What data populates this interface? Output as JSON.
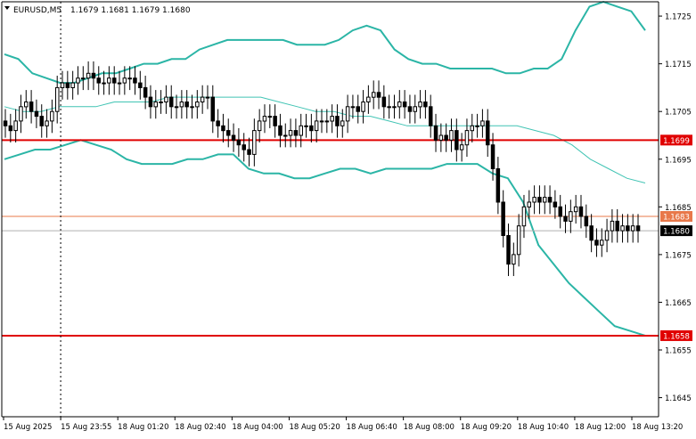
{
  "header": {
    "symbol_text": "EURUSD,M5",
    "ohlc_text": "1.1679 1.1681 1.1679 1.1680"
  },
  "colors": {
    "background": "#ffffff",
    "candle": "#000000",
    "bollinger_outer": "#2bb5a6",
    "bollinger_middle": "#41c4b4",
    "support_resistance": "#e00000",
    "level_orange": "#e8784a",
    "current_price_line": "#b0b0b0",
    "axis": "#000000"
  },
  "chart_data": {
    "type": "candlestick",
    "title": "EURUSD,M5",
    "ylim": [
      1.1641,
      1.1728
    ],
    "y_ticks": [
      "1.1725",
      "1.1715",
      "1.1705",
      "1.1695",
      "1.1685",
      "1.1675",
      "1.1665",
      "1.1655",
      "1.1645"
    ],
    "x_ticks": [
      "15 Aug 2025",
      "15 Aug 23:55",
      "18 Aug 01:20",
      "18 Aug 02:40",
      "18 Aug 04:00",
      "18 Aug 05:20",
      "18 Aug 06:40",
      "18 Aug 08:00",
      "18 Aug 09:20",
      "18 Aug 10:40",
      "18 Aug 12:00",
      "18 Aug 13:20"
    ],
    "session_separator": "15 Aug 23:55",
    "price_levels": [
      {
        "label": "1.1699",
        "value": 1.1699,
        "style": "red"
      },
      {
        "label": "1.1658",
        "value": 1.1658,
        "style": "red"
      },
      {
        "label": "1.1683",
        "value": 1.1683,
        "style": "orange"
      },
      {
        "label": "1.1680",
        "value": 1.168,
        "style": "current"
      }
    ],
    "close_series": [
      1.1702,
      1.1701,
      1.1703,
      1.1706,
      1.1707,
      1.1705,
      1.1704,
      1.1702,
      1.1703,
      1.1705,
      1.171,
      1.1711,
      1.171,
      1.1711,
      1.1712,
      1.1712,
      1.1713,
      1.1712,
      1.1711,
      1.1711,
      1.1712,
      1.1711,
      1.1711,
      1.1712,
      1.1712,
      1.1711,
      1.171,
      1.1708,
      1.1706,
      1.1707,
      1.1707,
      1.1708,
      1.1706,
      1.1706,
      1.1707,
      1.1706,
      1.1706,
      1.1707,
      1.1708,
      1.1708,
      1.1703,
      1.1702,
      1.1701,
      1.17,
      1.1699,
      1.1698,
      1.1697,
      1.1696,
      1.1701,
      1.1703,
      1.1704,
      1.1704,
      1.1702,
      1.17,
      1.17,
      1.1701,
      1.17,
      1.1702,
      1.1702,
      1.1701,
      1.1703,
      1.1703,
      1.1703,
      1.1704,
      1.1702,
      1.1703,
      1.1706,
      1.1706,
      1.1705,
      1.1707,
      1.1708,
      1.1709,
      1.1708,
      1.1706,
      1.1706,
      1.1706,
      1.1707,
      1.1706,
      1.1705,
      1.1706,
      1.1707,
      1.1706,
      1.1702,
      1.1699,
      1.17,
      1.1699,
      1.1701,
      1.1697,
      1.1698,
      1.1701,
      1.1702,
      1.1702,
      1.1703,
      1.1698,
      1.1693,
      1.1686,
      1.1679,
      1.1673,
      1.1675,
      1.1681,
      1.1685,
      1.1686,
      1.1687,
      1.1686,
      1.1687,
      1.1686,
      1.1685,
      1.1683,
      1.1682,
      1.1684,
      1.1685,
      1.1683,
      1.1681,
      1.1678,
      1.1677,
      1.1678,
      1.168,
      1.1682,
      1.168,
      1.1681,
      1.168,
      1.1681,
      1.168
    ],
    "series": [
      {
        "name": "Upper Bollinger Band",
        "values": [
          1.1717,
          1.1716,
          1.1713,
          1.1712,
          1.1711,
          1.1711,
          1.1712,
          1.1713,
          1.1713,
          1.1714,
          1.1715,
          1.1715,
          1.1716,
          1.1716,
          1.1718,
          1.1719,
          1.172,
          1.172,
          1.172,
          1.172,
          1.172,
          1.1719,
          1.1719,
          1.1719,
          1.172,
          1.1722,
          1.1723,
          1.1722,
          1.1718,
          1.1716,
          1.1715,
          1.1715,
          1.1714,
          1.1714,
          1.1714,
          1.1714,
          1.1713,
          1.1713,
          1.1714,
          1.1714,
          1.1716,
          1.1722,
          1.1727,
          1.1728,
          1.1727,
          1.1726,
          1.1722
        ]
      },
      {
        "name": "Middle Bollinger Band",
        "values": [
          1.1706,
          1.1705,
          1.1705,
          1.1706,
          1.1706,
          1.1706,
          1.1707,
          1.1707,
          1.1707,
          1.1708,
          1.1708,
          1.1708,
          1.1708,
          1.1708,
          1.1708,
          1.1707,
          1.1706,
          1.1705,
          1.1705,
          1.1704,
          1.1704,
          1.1703,
          1.1702,
          1.1702,
          1.1702,
          1.1702,
          1.1702,
          1.1702,
          1.1702,
          1.1701,
          1.17,
          1.1698,
          1.1695,
          1.1693,
          1.1691,
          1.169
        ]
      },
      {
        "name": "Lower Bollinger Band",
        "values": [
          1.1695,
          1.1696,
          1.1697,
          1.1697,
          1.1698,
          1.1699,
          1.1698,
          1.1697,
          1.1695,
          1.1694,
          1.1694,
          1.1694,
          1.1695,
          1.1695,
          1.1696,
          1.1696,
          1.1693,
          1.1692,
          1.1692,
          1.1691,
          1.1691,
          1.1692,
          1.1693,
          1.1693,
          1.1692,
          1.1693,
          1.1693,
          1.1693,
          1.1693,
          1.1694,
          1.1694,
          1.1694,
          1.1692,
          1.1691,
          1.1686,
          1.1677,
          1.1673,
          1.1669,
          1.1666,
          1.1663,
          1.166,
          1.1659,
          1.1658
        ]
      }
    ]
  }
}
